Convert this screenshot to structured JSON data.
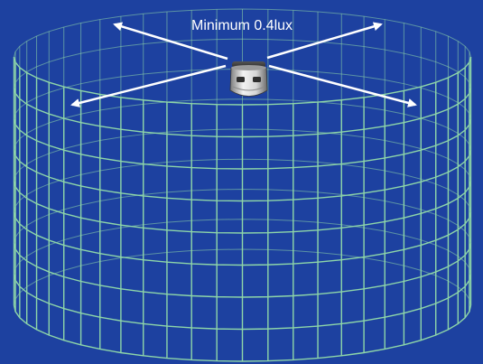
{
  "diagram": {
    "caption": "Minimum 0.4lux"
  },
  "colors": {
    "background": "#1d41a0",
    "grid": "#8ed6a8",
    "arrow": "#ffffff",
    "caption": "#ffffff"
  },
  "grid": {
    "vertical_segments": 28,
    "horizontal_bands": 8
  },
  "sensor_icon": "light-sensor-icon"
}
